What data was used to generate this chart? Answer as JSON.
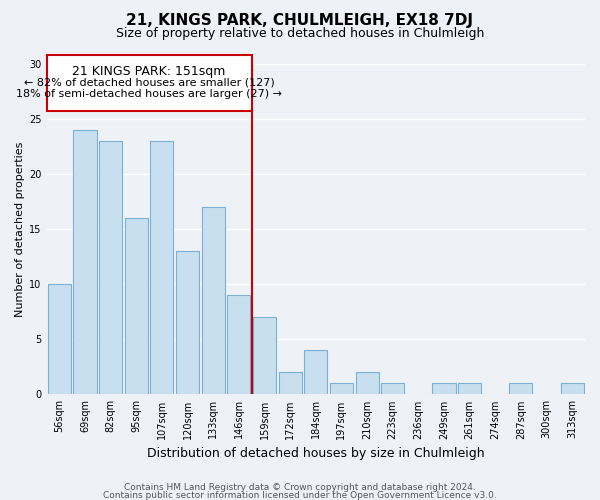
{
  "title": "21, KINGS PARK, CHULMLEIGH, EX18 7DJ",
  "subtitle": "Size of property relative to detached houses in Chulmleigh",
  "xlabel": "Distribution of detached houses by size in Chulmleigh",
  "ylabel": "Number of detached properties",
  "bar_labels": [
    "56sqm",
    "69sqm",
    "82sqm",
    "95sqm",
    "107sqm",
    "120sqm",
    "133sqm",
    "146sqm",
    "159sqm",
    "172sqm",
    "184sqm",
    "197sqm",
    "210sqm",
    "223sqm",
    "236sqm",
    "249sqm",
    "261sqm",
    "274sqm",
    "287sqm",
    "300sqm",
    "313sqm"
  ],
  "bar_values": [
    10,
    24,
    23,
    16,
    23,
    13,
    17,
    9,
    7,
    2,
    4,
    1,
    2,
    1,
    0,
    1,
    1,
    0,
    1,
    0,
    1
  ],
  "bar_color": "#c8dff0",
  "bar_edge_color": "#7ab0d4",
  "vline_x": 7.5,
  "vline_color": "#cc0000",
  "annotation_title": "21 KINGS PARK: 151sqm",
  "annotation_line1": "← 82% of detached houses are smaller (127)",
  "annotation_line2": "18% of semi-detached houses are larger (27) →",
  "annotation_box_color": "#ffffff",
  "annotation_box_edge": "#cc0000",
  "ylim": [
    0,
    30
  ],
  "yticks": [
    0,
    5,
    10,
    15,
    20,
    25,
    30
  ],
  "footer1": "Contains HM Land Registry data © Crown copyright and database right 2024.",
  "footer2": "Contains public sector information licensed under the Open Government Licence v3.0.",
  "background_color": "#eef2f7",
  "grid_color": "#ffffff",
  "title_fontsize": 11,
  "subtitle_fontsize": 9,
  "xlabel_fontsize": 9,
  "ylabel_fontsize": 8,
  "footer_fontsize": 6.5,
  "tick_fontsize": 7,
  "annot_title_fontsize": 9,
  "annot_text_fontsize": 8
}
